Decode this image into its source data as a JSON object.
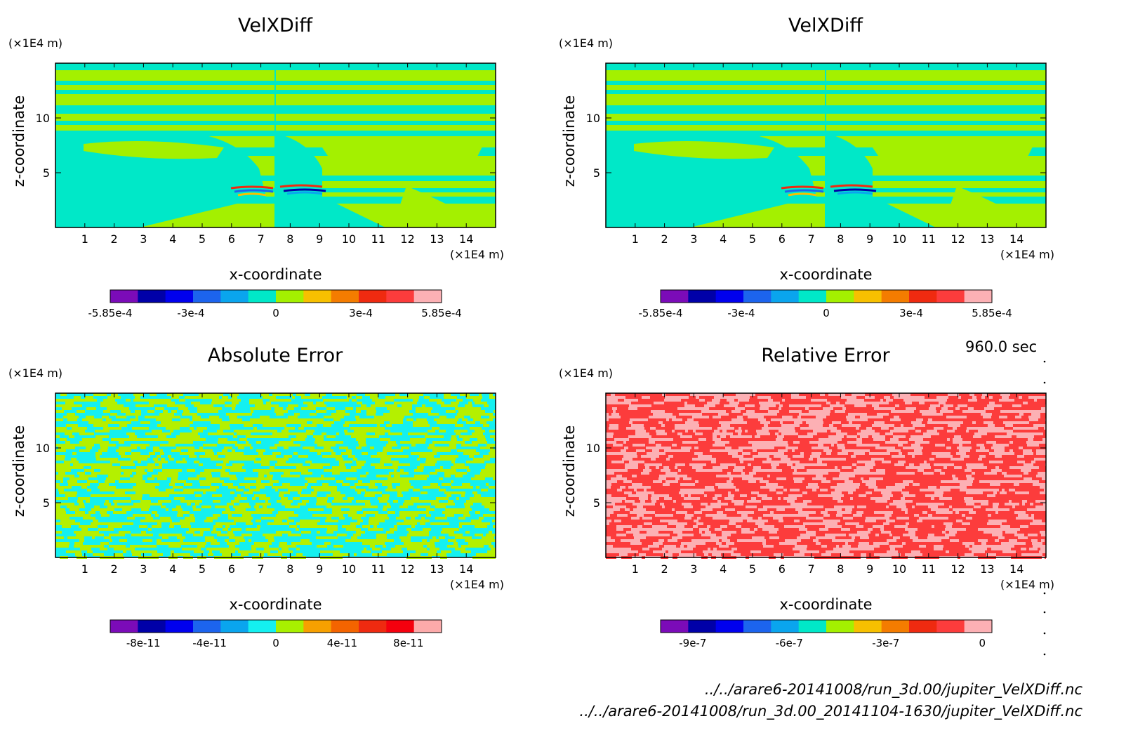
{
  "time_label": "960.0 sec",
  "file_line1": "../../arare6-20141008/run_3d.00/jupiter_VelXDiff.nc",
  "file_line2": "../../arare6-20141008/run_3d.00_20141104-1630/jupiter_VelXDiff.nc",
  "colors": {
    "rainbow": [
      "#7b0bb8",
      "#0000a8",
      "#0000ee",
      "#1c64ee",
      "#0aa5ee",
      "#00e8c8",
      "#a4f000",
      "#f7c000",
      "#f47c00",
      "#ef2a10",
      "#fc3c3c",
      "#fcb0b4"
    ],
    "abs_palette": [
      "#7b0bb8",
      "#0000a8",
      "#0000ee",
      "#1c64ee",
      "#0aa5ee",
      "#14f0f0",
      "#a8f000",
      "#f7a000",
      "#f46400",
      "#ef2a10",
      "#f5000e",
      "#fcaaaa"
    ],
    "rel_palette": [
      "#7b0bb8",
      "#0000a8",
      "#0000ee",
      "#1c64ee",
      "#0aa5ee",
      "#00e8c8",
      "#a4f000",
      "#f7c000",
      "#f47c00",
      "#ef2a10",
      "#fc3c3c",
      "#fcb0b4"
    ]
  },
  "chart_data": [
    {
      "type": "heatmap",
      "title": "VelXDiff",
      "xlabel": "x-coordinate",
      "ylabel": "z-coordinate",
      "x_unit": "(×1E4 m)",
      "y_unit": "(×1E4 m)",
      "xlim": [
        0,
        15
      ],
      "ylim": [
        0,
        15
      ],
      "xticks": [
        "1",
        "2",
        "3",
        "4",
        "5",
        "6",
        "7",
        "8",
        "9",
        "10",
        "11",
        "12",
        "13",
        "14"
      ],
      "yticks": [
        "5",
        "10"
      ],
      "colorbar_labels": [
        "-5.85e-4",
        "-3e-4",
        "0",
        "3e-4",
        "5.85e-4"
      ],
      "colorbar_values": [
        -0.000585,
        -0.0003,
        0,
        0.0003,
        0.000585
      ],
      "field": "velocity_x_difference"
    },
    {
      "type": "heatmap",
      "title": "VelXDiff",
      "xlabel": "x-coordinate",
      "ylabel": "z-coordinate",
      "x_unit": "(×1E4 m)",
      "y_unit": "(×1E4 m)",
      "xlim": [
        0,
        15
      ],
      "ylim": [
        0,
        15
      ],
      "xticks": [
        "1",
        "2",
        "3",
        "4",
        "5",
        "6",
        "7",
        "8",
        "9",
        "10",
        "11",
        "12",
        "13",
        "14"
      ],
      "yticks": [
        "5",
        "10"
      ],
      "colorbar_labels": [
        "-5.85e-4",
        "-3e-4",
        "0",
        "3e-4",
        "5.85e-4"
      ],
      "colorbar_values": [
        -0.000585,
        -0.0003,
        0,
        0.0003,
        0.000585
      ],
      "field": "velocity_x_difference"
    },
    {
      "type": "heatmap",
      "title": "Absolute Error",
      "xlabel": "x-coordinate",
      "ylabel": "z-coordinate",
      "x_unit": "(×1E4 m)",
      "y_unit": "(×1E4 m)",
      "xlim": [
        0,
        15
      ],
      "ylim": [
        0,
        15
      ],
      "xticks": [
        "1",
        "2",
        "3",
        "4",
        "5",
        "6",
        "7",
        "8",
        "9",
        "10",
        "11",
        "12",
        "13",
        "14"
      ],
      "yticks": [
        "5",
        "10"
      ],
      "colorbar_labels": [
        "-8e-11",
        "-4e-11",
        "0",
        "4e-11",
        "8e-11"
      ],
      "colorbar_values": [
        -8e-11,
        -4e-11,
        0,
        4e-11,
        8e-11
      ],
      "field": "noise_cyan_yellow"
    },
    {
      "type": "heatmap",
      "title": "Relative Error",
      "xlabel": "x-coordinate",
      "ylabel": "z-coordinate",
      "x_unit": "(×1E4 m)",
      "y_unit": "(×1E4 m)",
      "xlim": [
        0,
        15
      ],
      "ylim": [
        0,
        15
      ],
      "xticks": [
        "1",
        "2",
        "3",
        "4",
        "5",
        "6",
        "7",
        "8",
        "9",
        "10",
        "11",
        "12",
        "13",
        "14"
      ],
      "yticks": [
        "5",
        "10"
      ],
      "colorbar_labels": [
        "-9e-7",
        "-6e-7",
        "-3e-7",
        "0"
      ],
      "colorbar_values": [
        -9e-07,
        -6e-07,
        -3e-07,
        0
      ],
      "field": "noise_red_pink"
    }
  ]
}
